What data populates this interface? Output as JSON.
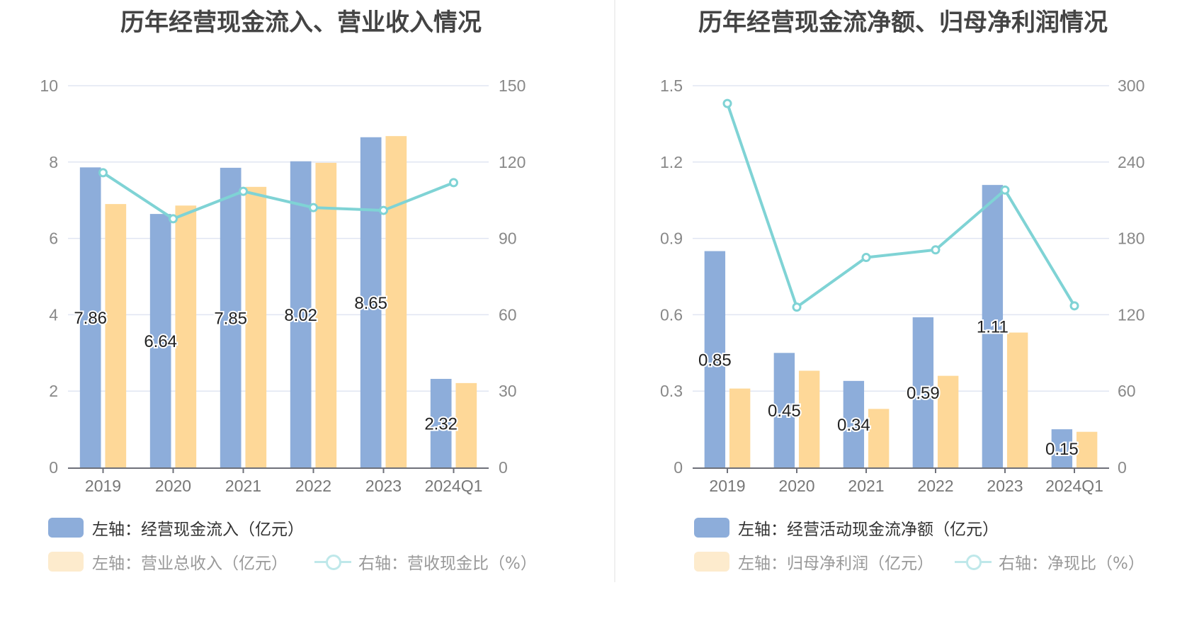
{
  "colors": {
    "bar_primary": "#8dadda",
    "bar_secondary": "#fed898",
    "line": "#7fd3d5",
    "grid": "#e0e5f2",
    "legend_secondary_swatch": "#fdebcd",
    "legend_line_swatch": "#bfe8ea"
  },
  "chart_data": [
    {
      "type": "bar+line",
      "title": "历年经营现金流入、营业收入情况",
      "categories": [
        "2019",
        "2020",
        "2021",
        "2022",
        "2023",
        "2024Q1"
      ],
      "left_axis": {
        "ticks": [
          "0",
          "2",
          "4",
          "6",
          "8",
          "10"
        ],
        "ylim": [
          0,
          10
        ]
      },
      "right_axis": {
        "ticks": [
          "0",
          "30",
          "60",
          "90",
          "120",
          "150"
        ],
        "ylim": [
          0,
          150
        ]
      },
      "series": [
        {
          "name": "左轴：经营现金流入（亿元）",
          "type": "bar",
          "axis": "left",
          "values": [
            7.86,
            6.64,
            7.85,
            8.02,
            8.65,
            2.32
          ],
          "labels": [
            "7.86",
            "6.64",
            "7.85",
            "8.02",
            "8.65",
            "2.32"
          ]
        },
        {
          "name": "左轴：营业总收入（亿元）",
          "type": "bar",
          "axis": "left",
          "values": [
            6.9,
            6.86,
            7.35,
            7.98,
            8.68,
            2.21
          ]
        },
        {
          "name": "右轴：营收现金比（%）",
          "type": "line",
          "axis": "right",
          "values": [
            115.8,
            97.7,
            108.5,
            102.1,
            101.0,
            111.9
          ]
        }
      ],
      "grid": true,
      "legend_position": "bottom-left"
    },
    {
      "type": "bar+line",
      "title": "历年经营现金流净额、归母净利润情况",
      "categories": [
        "2019",
        "2020",
        "2021",
        "2022",
        "2023",
        "2024Q1"
      ],
      "left_axis": {
        "ticks": [
          "0",
          "0.3",
          "0.6",
          "0.9",
          "1.2",
          "1.5"
        ],
        "ylim": [
          0,
          1.5
        ]
      },
      "right_axis": {
        "ticks": [
          "0",
          "60",
          "120",
          "180",
          "240",
          "300"
        ],
        "ylim": [
          0,
          300
        ]
      },
      "series": [
        {
          "name": "左轴：经营活动现金流净额（亿元）",
          "type": "bar",
          "axis": "left",
          "values": [
            0.85,
            0.45,
            0.34,
            0.59,
            1.11,
            0.15
          ],
          "labels": [
            "0.85",
            "0.45",
            "0.34",
            "0.59",
            "1.11",
            "0.15"
          ]
        },
        {
          "name": "左轴：归母净利润（亿元）",
          "type": "bar",
          "axis": "left",
          "values": [
            0.31,
            0.38,
            0.23,
            0.36,
            0.53,
            0.14
          ]
        },
        {
          "name": "右轴：净现比（%）",
          "type": "line",
          "axis": "right",
          "values": [
            286,
            126,
            165,
            171,
            218,
            127
          ]
        }
      ],
      "grid": true,
      "legend_position": "bottom-left"
    }
  ]
}
